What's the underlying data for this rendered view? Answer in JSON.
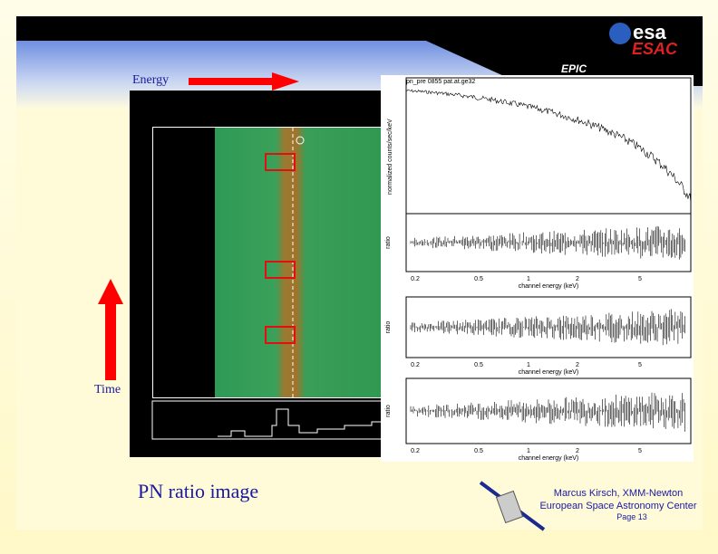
{
  "header": {
    "logo_top": "esa",
    "logo_bottom": "ESAC",
    "instrument": "EPIC"
  },
  "labels": {
    "energy": "Energy",
    "time": "Time"
  },
  "title": "PN ratio image",
  "footer": {
    "author": "Marcus Kirsch, XMM-Newton",
    "org": "European Space Astronomy Center",
    "page": "Page 13"
  },
  "plot": {
    "title": "pn_pre 0855 pat.at.ge32",
    "ylabel": "normalized counts/sec/keV",
    "ratio_label": "ratio",
    "xlabel": "channel energy (keV)",
    "xticks": [
      "0.2",
      "0.5",
      "1",
      "2",
      "5"
    ]
  }
}
